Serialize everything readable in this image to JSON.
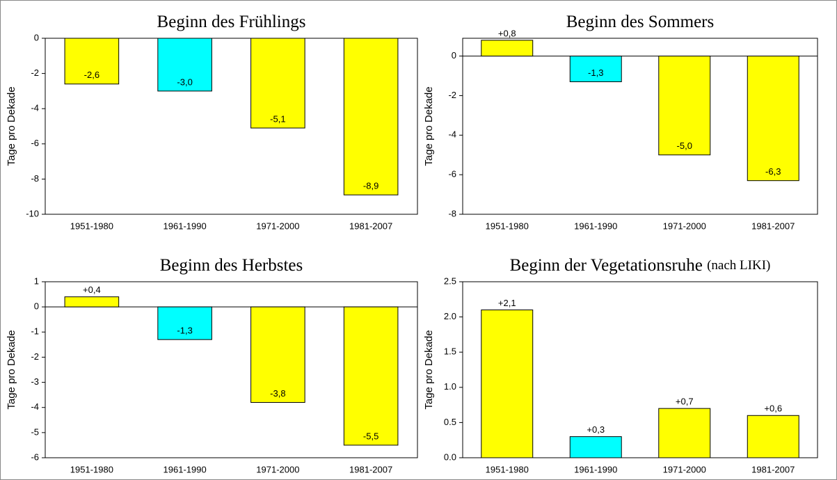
{
  "chart_data": [
    {
      "type": "bar",
      "title": "Beginn des Frühlings",
      "y_label": "Tage pro Dekade",
      "categories": [
        "1951-1980",
        "1961-1990",
        "1971-2000",
        "1981-2007"
      ],
      "values": [
        -2.6,
        -3.0,
        -5.1,
        -8.9
      ],
      "value_labels": [
        "-2,6",
        "-3,0",
        "-5,1",
        "-8,9"
      ],
      "colors": [
        "#ffff00",
        "#00ffff",
        "#ffff00",
        "#ffff00"
      ],
      "ylim": [
        -10,
        0
      ],
      "yticks": [
        0,
        -2,
        -4,
        -6,
        -8,
        -10
      ]
    },
    {
      "type": "bar",
      "title": "Beginn des Sommers",
      "y_label": "Tage pro Dekade",
      "categories": [
        "1951-1980",
        "1961-1990",
        "1971-2000",
        "1981-2007"
      ],
      "values": [
        0.8,
        -1.3,
        -5.0,
        -6.3
      ],
      "value_labels": [
        "+0,8",
        "-1,3",
        "-5,0",
        "-6,3"
      ],
      "colors": [
        "#ffff00",
        "#00ffff",
        "#ffff00",
        "#ffff00"
      ],
      "ylim": [
        -8,
        0.9
      ],
      "yticks": [
        0,
        -2,
        -4,
        -6,
        -8
      ]
    },
    {
      "type": "bar",
      "title": "Beginn des Herbstes",
      "y_label": "Tage pro Dekade",
      "categories": [
        "1951-1980",
        "1961-1990",
        "1971-2000",
        "1981-2007"
      ],
      "values": [
        0.4,
        -1.3,
        -3.8,
        -5.5
      ],
      "value_labels": [
        "+0,4",
        "-1,3",
        "-3,8",
        "-5,5"
      ],
      "colors": [
        "#ffff00",
        "#00ffff",
        "#ffff00",
        "#ffff00"
      ],
      "ylim": [
        -6,
        1
      ],
      "yticks": [
        1,
        0,
        -1,
        -2,
        -3,
        -4,
        -5,
        -6
      ]
    },
    {
      "type": "bar",
      "title": "Beginn der Vegetationsruhe",
      "title_suffix": "(nach LIKI)",
      "y_label": "Tage pro Dekade",
      "categories": [
        "1951-1980",
        "1961-1990",
        "1971-2000",
        "1981-2007"
      ],
      "values": [
        2.1,
        0.3,
        0.7,
        0.6
      ],
      "value_labels": [
        "+2,1",
        "+0,3",
        "+0,7",
        "+0,6"
      ],
      "colors": [
        "#ffff00",
        "#00ffff",
        "#ffff00",
        "#ffff00"
      ],
      "ylim": [
        0,
        2.5
      ],
      "yticks": [
        {
          "value": 0,
          "label": "0.0"
        },
        {
          "value": 0.5,
          "label": "0.5"
        },
        {
          "value": 1,
          "label": "1.0"
        },
        {
          "value": 1.5,
          "label": "1.5"
        },
        {
          "value": 2,
          "label": "2.0"
        },
        {
          "value": 2.5,
          "label": "2.5"
        }
      ]
    }
  ]
}
